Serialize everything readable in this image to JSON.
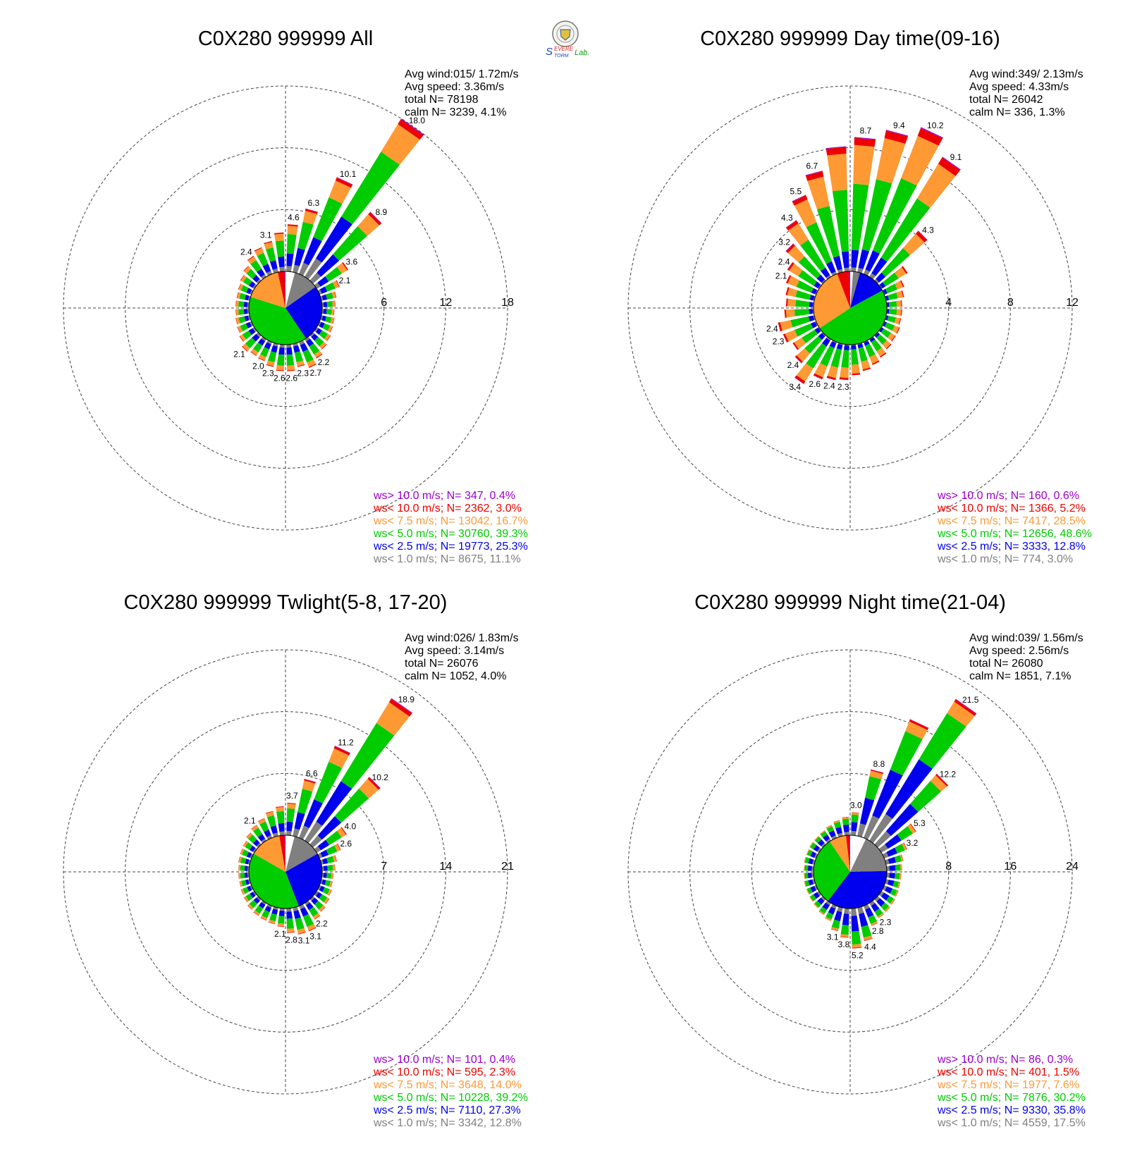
{
  "colors": {
    "calm": "#ffffff",
    "ws_lt_1": "#808080",
    "ws_lt_2_5": "#0000ee",
    "ws_lt_5": "#00cc00",
    "ws_lt_7_5": "#ff9933",
    "ws_lt_10": "#ee0000",
    "ws_gt_10": "#9900cc"
  },
  "logo": {
    "icon": "severe-storm-lab-logo",
    "text_s1": "S",
    "text_evere": "EVERE",
    "text_torm": "TORM",
    "text_lab": "Lab."
  },
  "chart_data": [
    {
      "type": "wind-rose",
      "title": "C0X280 999999 All",
      "stats": [
        "Avg wind:015/ 1.72m/s",
        "Avg speed: 3.36m/s",
        "total N=      78198",
        "calm N=   3239,   4.1%"
      ],
      "rmax": 18,
      "ring_labels": [
        "6",
        "12",
        "18"
      ],
      "pie": [
        4.1,
        11.1,
        25.3,
        39.3,
        16.7,
        3.0,
        0.4
      ],
      "legend": [
        "ws> 10.0 m/s; N=   347,  0.4%",
        "ws< 10.0 m/s; N=  2362,  3.0%",
        "ws<  7.5 m/s; N= 13042, 16.7%",
        "ws<  5.0 m/s; N= 30760, 39.3%",
        "ws<  2.5 m/s; N= 19773, 25.3%",
        "ws<  1.0 m/s; N=  8675, 11.1%"
      ],
      "bars": [
        {
          "deg": 5,
          "total": 4.6,
          "label": "4.6"
        },
        {
          "deg": 15,
          "total": 6.3,
          "label": "6.3"
        },
        {
          "deg": 25,
          "total": 10.1,
          "label": "10.1"
        },
        {
          "deg": 35,
          "total": 18.0,
          "label": "18.0"
        },
        {
          "deg": 45,
          "total": 8.9,
          "label": "8.9"
        },
        {
          "deg": 55,
          "total": 3.6,
          "label": "3.6"
        },
        {
          "deg": 65,
          "total": 2.1,
          "label": "2.1"
        },
        {
          "deg": 75,
          "total": 1.5
        },
        {
          "deg": 85,
          "total": 1.3
        },
        {
          "deg": 95,
          "total": 1.2
        },
        {
          "deg": 105,
          "total": 1.3
        },
        {
          "deg": 115,
          "total": 1.4
        },
        {
          "deg": 125,
          "total": 1.6
        },
        {
          "deg": 135,
          "total": 1.8
        },
        {
          "deg": 145,
          "total": 2.2,
          "label": "2.2"
        },
        {
          "deg": 155,
          "total": 2.7,
          "label": "2.7"
        },
        {
          "deg": 165,
          "total": 2.3,
          "label": "2.3"
        },
        {
          "deg": 175,
          "total": 2.6,
          "label": "2.6"
        },
        {
          "deg": 185,
          "total": 2.6,
          "label": "2.6"
        },
        {
          "deg": 195,
          "total": 2.3,
          "label": "2.3"
        },
        {
          "deg": 205,
          "total": 2.0,
          "label": "2.0"
        },
        {
          "deg": 215,
          "total": 1.9
        },
        {
          "deg": 225,
          "total": 2.1,
          "label": "2.1"
        },
        {
          "deg": 235,
          "total": 1.7
        },
        {
          "deg": 245,
          "total": 1.5
        },
        {
          "deg": 255,
          "total": 1.4
        },
        {
          "deg": 265,
          "total": 1.3
        },
        {
          "deg": 275,
          "total": 1.3
        },
        {
          "deg": 285,
          "total": 1.3
        },
        {
          "deg": 295,
          "total": 1.4
        },
        {
          "deg": 305,
          "total": 1.6
        },
        {
          "deg": 315,
          "total": 1.9
        },
        {
          "deg": 325,
          "total": 2.4,
          "label": "2.4"
        },
        {
          "deg": 335,
          "total": 2.8
        },
        {
          "deg": 345,
          "total": 3.1,
          "label": "3.1"
        },
        {
          "deg": 355,
          "total": 3.8
        }
      ]
    },
    {
      "type": "wind-rose",
      "title": "C0X280 999999 Day time(09-16)",
      "stats": [
        "Avg wind:349/ 2.13m/s",
        "Avg speed: 4.33m/s",
        "total N=      26042",
        "calm N=    336,   1.3%"
      ],
      "rmax": 12,
      "ring_labels": [
        "4",
        "8",
        "12"
      ],
      "pie": [
        1.3,
        3.0,
        12.8,
        48.6,
        28.5,
        5.2,
        0.6
      ],
      "legend": [
        "ws> 10.0 m/s; N=   160,  0.6%",
        "ws< 10.0 m/s; N=  1366,  5.2%",
        "ws<  7.5 m/s; N=  7417, 28.5%",
        "ws<  5.0 m/s; N= 12656, 48.6%",
        "ws<  2.5 m/s; N=  3333, 12.8%",
        "ws<  1.0 m/s; N=   774,  3.0%"
      ],
      "bars": [
        {
          "deg": 5,
          "total": 8.7,
          "label": "8.7"
        },
        {
          "deg": 15,
          "total": 9.4,
          "label": "9.4"
        },
        {
          "deg": 25,
          "total": 10.2,
          "label": "10.2"
        },
        {
          "deg": 35,
          "total": 9.1,
          "label": "9.1"
        },
        {
          "deg": 45,
          "total": 4.3,
          "label": "4.3"
        },
        {
          "deg": 55,
          "total": 2.0
        },
        {
          "deg": 65,
          "total": 1.4
        },
        {
          "deg": 75,
          "total": 1.2
        },
        {
          "deg": 85,
          "total": 1.0
        },
        {
          "deg": 95,
          "total": 1.0
        },
        {
          "deg": 105,
          "total": 1.0
        },
        {
          "deg": 115,
          "total": 1.1
        },
        {
          "deg": 125,
          "total": 1.1
        },
        {
          "deg": 135,
          "total": 1.2
        },
        {
          "deg": 145,
          "total": 1.4
        },
        {
          "deg": 155,
          "total": 1.6
        },
        {
          "deg": 165,
          "total": 1.8
        },
        {
          "deg": 175,
          "total": 2.0
        },
        {
          "deg": 185,
          "total": 2.3,
          "label": "2.3"
        },
        {
          "deg": 195,
          "total": 2.4,
          "label": "2.4"
        },
        {
          "deg": 205,
          "total": 2.6,
          "label": "2.6"
        },
        {
          "deg": 215,
          "total": 3.4,
          "label": "3.4"
        },
        {
          "deg": 225,
          "total": 2.4,
          "label": "2.4"
        },
        {
          "deg": 235,
          "total": 2.0
        },
        {
          "deg": 245,
          "total": 2.3,
          "label": "2.3"
        },
        {
          "deg": 255,
          "total": 2.4,
          "label": "2.4"
        },
        {
          "deg": 265,
          "total": 1.9
        },
        {
          "deg": 275,
          "total": 1.8
        },
        {
          "deg": 285,
          "total": 1.9
        },
        {
          "deg": 295,
          "total": 2.1,
          "label": "2.1"
        },
        {
          "deg": 305,
          "total": 2.4,
          "label": "2.4"
        },
        {
          "deg": 315,
          "total": 3.2,
          "label": "3.2"
        },
        {
          "deg": 325,
          "total": 4.3,
          "label": "4.3"
        },
        {
          "deg": 335,
          "total": 5.5,
          "label": "5.5"
        },
        {
          "deg": 345,
          "total": 6.7,
          "label": "6.7"
        },
        {
          "deg": 355,
          "total": 8.1
        }
      ]
    },
    {
      "type": "wind-rose",
      "title": "C0X280 999999 Twlight(5-8, 17-20)",
      "stats": [
        "Avg wind:026/ 1.83m/s",
        "Avg speed: 3.14m/s",
        "total N=      26076",
        "calm N=   1052,   4.0%"
      ],
      "rmax": 21,
      "ring_labels": [
        "7",
        "14",
        "21"
      ],
      "pie": [
        4.0,
        12.8,
        27.3,
        39.2,
        14.0,
        2.3,
        0.4
      ],
      "legend": [
        "ws> 10.0 m/s; N=   101,  0.4%",
        "ws< 10.0 m/s; N=   595,  2.3%",
        "ws<  7.5 m/s; N=  3648, 14.0%",
        "ws<  5.0 m/s; N= 10228, 39.2%",
        "ws<  2.5 m/s; N=  7110, 27.3%",
        "ws<  1.0 m/s; N=  3342, 12.8%"
      ],
      "bars": [
        {
          "deg": 5,
          "total": 3.7,
          "label": "3.7"
        },
        {
          "deg": 15,
          "total": 6.6,
          "label": "6.6"
        },
        {
          "deg": 25,
          "total": 11.2,
          "label": "11.2"
        },
        {
          "deg": 35,
          "total": 18.9,
          "label": "18.9"
        },
        {
          "deg": 45,
          "total": 10.2,
          "label": "10.2"
        },
        {
          "deg": 55,
          "total": 4.0,
          "label": "4.0"
        },
        {
          "deg": 65,
          "total": 2.6,
          "label": "2.6"
        },
        {
          "deg": 75,
          "total": 1.8
        },
        {
          "deg": 85,
          "total": 1.5
        },
        {
          "deg": 95,
          "total": 1.3
        },
        {
          "deg": 105,
          "total": 1.3
        },
        {
          "deg": 115,
          "total": 1.5
        },
        {
          "deg": 125,
          "total": 1.7
        },
        {
          "deg": 135,
          "total": 1.9
        },
        {
          "deg": 145,
          "total": 2.2,
          "label": "2.2"
        },
        {
          "deg": 155,
          "total": 3.1,
          "label": "3.1"
        },
        {
          "deg": 165,
          "total": 3.1,
          "label": "3.1"
        },
        {
          "deg": 175,
          "total": 2.8,
          "label": "2.8"
        },
        {
          "deg": 185,
          "total": 2.1,
          "label": "2.1"
        },
        {
          "deg": 195,
          "total": 1.9
        },
        {
          "deg": 205,
          "total": 1.8
        },
        {
          "deg": 215,
          "total": 1.7
        },
        {
          "deg": 225,
          "total": 1.6
        },
        {
          "deg": 235,
          "total": 1.4
        },
        {
          "deg": 245,
          "total": 1.3
        },
        {
          "deg": 255,
          "total": 1.2
        },
        {
          "deg": 265,
          "total": 1.2
        },
        {
          "deg": 275,
          "total": 1.2
        },
        {
          "deg": 285,
          "total": 1.3
        },
        {
          "deg": 295,
          "total": 1.4
        },
        {
          "deg": 305,
          "total": 1.5
        },
        {
          "deg": 315,
          "total": 1.8
        },
        {
          "deg": 325,
          "total": 2.1,
          "label": "2.1"
        },
        {
          "deg": 335,
          "total": 2.4
        },
        {
          "deg": 345,
          "total": 2.9
        },
        {
          "deg": 355,
          "total": 3.3
        }
      ]
    },
    {
      "type": "wind-rose",
      "title": "C0X280 999999 Night time(21-04)",
      "stats": [
        "Avg wind:039/ 1.56m/s",
        "Avg speed: 2.56m/s",
        "total N=      26080",
        "calm N=   1851,   7.1%"
      ],
      "rmax": 24,
      "ring_labels": [
        "8",
        "16",
        "24"
      ],
      "pie": [
        7.1,
        17.5,
        35.8,
        30.2,
        7.6,
        1.5,
        0.3
      ],
      "legend": [
        "ws> 10.0 m/s; N=    86,  0.3%",
        "ws< 10.0 m/s; N=   401,  1.5%",
        "ws<  7.5 m/s; N=  1977,  7.6%",
        "ws<  5.0 m/s; N=  7876, 30.2%",
        "ws<  2.5 m/s; N=  9330, 35.8%",
        "ws<  1.0 m/s; N=  4559, 17.5%"
      ],
      "bars": [
        {
          "deg": 5,
          "total": 3.0,
          "label": "3.0"
        },
        {
          "deg": 15,
          "total": 8.8,
          "label": "8.8"
        },
        {
          "deg": 25,
          "total": 16.5
        },
        {
          "deg": 35,
          "total": 21.5,
          "label": "21.5"
        },
        {
          "deg": 45,
          "total": 12.2,
          "label": "12.2"
        },
        {
          "deg": 55,
          "total": 5.3,
          "label": "5.3"
        },
        {
          "deg": 65,
          "total": 3.2,
          "label": "3.2"
        },
        {
          "deg": 75,
          "total": 2.3
        },
        {
          "deg": 85,
          "total": 2.0
        },
        {
          "deg": 95,
          "total": 1.9
        },
        {
          "deg": 105,
          "total": 1.9
        },
        {
          "deg": 115,
          "total": 2.0
        },
        {
          "deg": 125,
          "total": 2.1
        },
        {
          "deg": 135,
          "total": 2.2
        },
        {
          "deg": 145,
          "total": 2.3,
          "label": "2.3"
        },
        {
          "deg": 155,
          "total": 2.8,
          "label": "2.8"
        },
        {
          "deg": 165,
          "total": 4.4,
          "label": "4.4"
        },
        {
          "deg": 175,
          "total": 5.2,
          "label": "5.2"
        },
        {
          "deg": 185,
          "total": 3.8,
          "label": "3.8"
        },
        {
          "deg": 195,
          "total": 3.1,
          "label": "3.1"
        },
        {
          "deg": 205,
          "total": 2.1
        },
        {
          "deg": 215,
          "total": 1.8
        },
        {
          "deg": 225,
          "total": 1.6
        },
        {
          "deg": 235,
          "total": 1.5
        },
        {
          "deg": 245,
          "total": 1.4
        },
        {
          "deg": 255,
          "total": 1.4
        },
        {
          "deg": 265,
          "total": 1.3
        },
        {
          "deg": 275,
          "total": 1.3
        },
        {
          "deg": 285,
          "total": 1.4
        },
        {
          "deg": 295,
          "total": 1.4
        },
        {
          "deg": 305,
          "total": 1.5
        },
        {
          "deg": 315,
          "total": 1.5
        },
        {
          "deg": 325,
          "total": 1.6
        },
        {
          "deg": 335,
          "total": 1.8
        },
        {
          "deg": 345,
          "total": 2.1
        },
        {
          "deg": 355,
          "total": 2.4
        }
      ]
    }
  ]
}
